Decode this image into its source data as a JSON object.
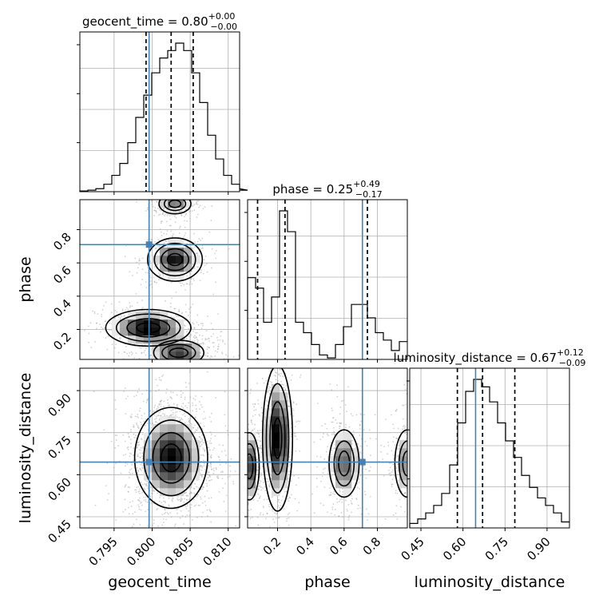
{
  "chart_data": {
    "type": "corner",
    "truth_color": "#4682b4",
    "parameters": [
      "geocent_time",
      "phase",
      "luminosity_distance"
    ],
    "axis_labels": {
      "geocent_time": "geocent_time",
      "phase": "phase",
      "luminosity_distance": "luminosity_distance"
    },
    "titles": {
      "geocent_time": {
        "name": "geocent_time",
        "value": "0.80",
        "plus": "+0.00",
        "minus": "−0.00"
      },
      "phase": {
        "name": "phase",
        "value": "0.25",
        "plus": "+0.49",
        "minus": "−0.17"
      },
      "luminosity_distance": {
        "name": "luminosity_distance",
        "value": "0.67",
        "plus": "+0.12",
        "minus": "−0.09"
      }
    },
    "ranges": {
      "geocent_time": [
        0.7905,
        0.8115
      ],
      "phase": [
        0.02,
        0.98
      ],
      "luminosity_distance": [
        0.41,
        0.98
      ]
    },
    "ticks": {
      "geocent_time": [
        0.795,
        0.8,
        0.805,
        0.81
      ],
      "phase": [
        0.2,
        0.4,
        0.6,
        0.8
      ],
      "luminosity_distance": [
        0.45,
        0.6,
        0.75,
        0.9
      ]
    },
    "tick_labels": {
      "geocent_time": [
        "0.795",
        "0.800",
        "0.805",
        "0.810"
      ],
      "phase": [
        "0.2",
        "0.4",
        "0.6",
        "0.8"
      ],
      "luminosity_distance": [
        "0.45",
        "0.60",
        "0.75",
        "0.90"
      ]
    },
    "truths": {
      "geocent_time": 0.7996,
      "phase": 0.71,
      "luminosity_distance": 0.645
    },
    "quantiles": {
      "geocent_time": [
        0.7992,
        0.8025,
        0.8054
      ],
      "phase": [
        0.08,
        0.245,
        0.74
      ],
      "luminosity_distance": [
        0.58,
        0.67,
        0.785
      ]
    },
    "histograms": {
      "geocent_time": {
        "edges_start": 0.7905,
        "bin_width": 0.00105,
        "counts": [
          0.5,
          1,
          2,
          5,
          11,
          19,
          33,
          50,
          65,
          80,
          90,
          95,
          100,
          95,
          80,
          60,
          38,
          22,
          11,
          5,
          2,
          1
        ]
      },
      "phase": {
        "edges_start": 0.02,
        "bin_width": 0.048,
        "counts": [
          55,
          48,
          25,
          42,
          100,
          86,
          25,
          18,
          10,
          3,
          1,
          10,
          22,
          37,
          37,
          28,
          18,
          13,
          6,
          12
        ]
      },
      "luminosity_distance": {
        "edges_start": 0.41,
        "bin_width": 0.0285,
        "counts": [
          3,
          6,
          10,
          15,
          23,
          42,
          70,
          91,
          99,
          94,
          84,
          70,
          58,
          47,
          35,
          27,
          20,
          15,
          10,
          4
        ]
      }
    },
    "modes_2d": {
      "phase_vs_geocent_time": [
        {
          "x": 0.803,
          "y": 0.955,
          "sx": 0.0014,
          "sy": 0.04,
          "w": 0.6
        },
        {
          "x": 0.803,
          "y": 0.62,
          "sx": 0.0018,
          "sy": 0.065,
          "w": 0.9
        },
        {
          "x": 0.7995,
          "y": 0.21,
          "sx": 0.0028,
          "sy": 0.055,
          "w": 1.0
        },
        {
          "x": 0.8035,
          "y": 0.06,
          "sx": 0.0022,
          "sy": 0.05,
          "w": 0.8
        }
      ],
      "luminosity_distance_vs_geocent_time": [
        {
          "x": 0.8025,
          "y": 0.66,
          "sx": 0.0024,
          "sy": 0.09,
          "w": 1.0
        }
      ],
      "luminosity_distance_vs_phase": [
        {
          "x": 0.03,
          "y": 0.63,
          "sx": 0.04,
          "sy": 0.08,
          "w": 0.8
        },
        {
          "x": 0.2,
          "y": 0.73,
          "sx": 0.045,
          "sy": 0.13,
          "w": 1.0
        },
        {
          "x": 0.6,
          "y": 0.64,
          "sx": 0.06,
          "sy": 0.08,
          "w": 0.7
        },
        {
          "x": 0.98,
          "y": 0.64,
          "sx": 0.05,
          "sy": 0.08,
          "w": 0.6
        }
      ]
    }
  }
}
